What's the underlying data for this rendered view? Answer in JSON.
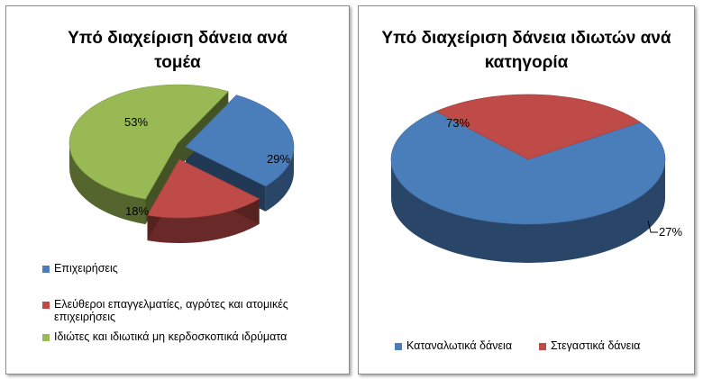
{
  "chart_data": [
    {
      "type": "pie",
      "title": "Υπό διαχείριση δάνεια ανά τομέα",
      "legend_position": "bottom",
      "categories": [
        "Επιχειρήσεις",
        "Ελεύθεροι επαγγελματίες, αγρότες και ατομικές επιχειρήσεις",
        "Ιδιώτες και ιδιωτικά μη κερδοσκοπικά ιδρύματα"
      ],
      "values": [
        29,
        18,
        53
      ],
      "labels": [
        "29%",
        "18%",
        "53%"
      ],
      "colors": [
        "#4a7ebb",
        "#be4b48",
        "#98b954"
      ]
    },
    {
      "type": "pie",
      "title": "Υπό διαχείριση δάνεια ιδιωτών ανά κατηγορία",
      "legend_position": "bottom",
      "categories": [
        "Καταναλωτικά δάνεια",
        "Στεγαστικά δάνεια"
      ],
      "values": [
        73,
        27
      ],
      "labels": [
        "73%",
        "27%"
      ],
      "colors": [
        "#4a7ebb",
        "#be4b48"
      ]
    }
  ]
}
